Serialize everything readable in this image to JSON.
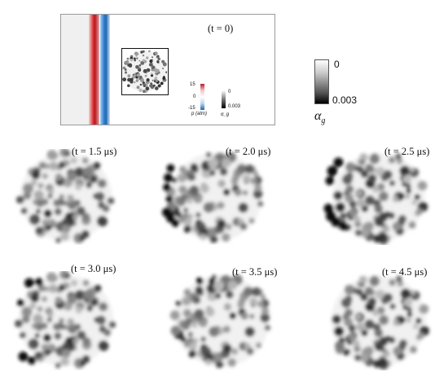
{
  "top_panel": {
    "time_label": "(t = 0)",
    "pressure_legend": {
      "max": "15",
      "mid": "0",
      "min": "-15",
      "label": "p (atm)"
    },
    "alpha_mini_legend": {
      "max": "0",
      "min": "0.003",
      "label": "α_g"
    }
  },
  "right_legend": {
    "top": "0",
    "bottom": "0.003",
    "symbol": "α",
    "subscript": "g"
  },
  "snapshots": [
    {
      "label": "(t = 1.5 μs)"
    },
    {
      "label": "(t = 2.0 μs)"
    },
    {
      "label": "(t = 2.5 μs)"
    },
    {
      "label": "(t = 3.0 μs)"
    },
    {
      "label": "(t = 3.5 μs)"
    },
    {
      "label": "(t = 4.5 μs)"
    }
  ],
  "colors": {
    "shock_red": "#d7262b",
    "shock_blue": "#2e7fd0",
    "bubble_dark": "#111111"
  }
}
